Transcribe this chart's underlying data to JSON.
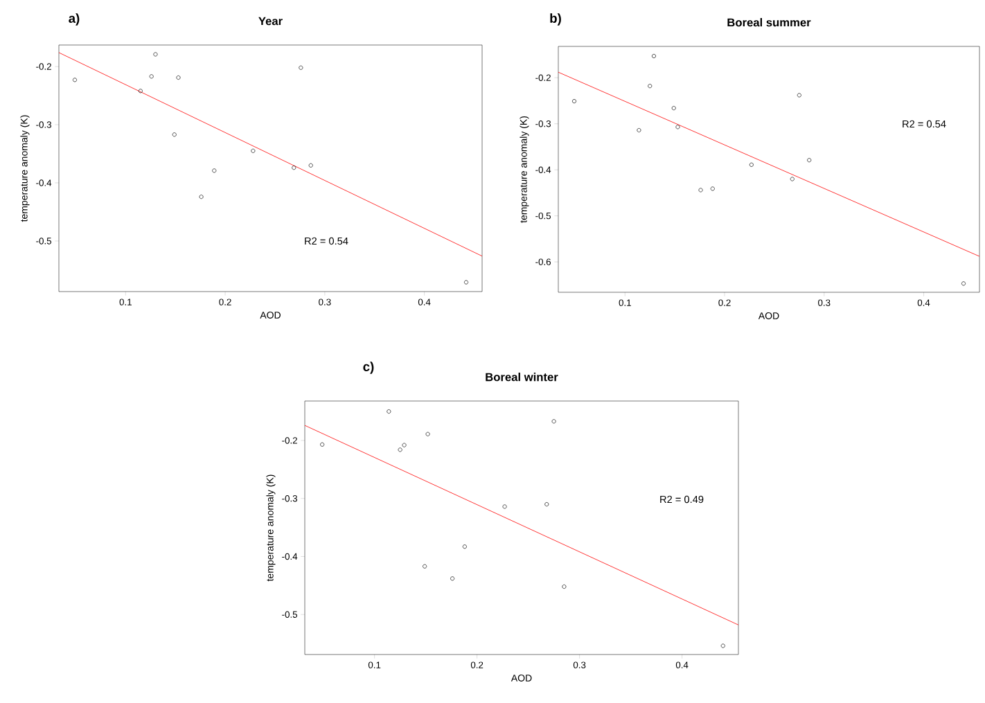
{
  "chart_data": [
    {
      "type": "scatter",
      "title": "Year",
      "xlabel": "AOD",
      "ylabel": "temperature anomaly (K)",
      "annotations": [
        "a)",
        "R2 = 0.54"
      ],
      "marker": "circle",
      "grid": false,
      "xlim": [
        0.033,
        0.458
      ],
      "ylim": [
        -0.587,
        -0.163
      ],
      "xticks": [
        0.1,
        0.2,
        0.3,
        0.4
      ],
      "yticks": [
        -0.5,
        -0.4,
        -0.3,
        -0.2
      ],
      "series": [
        {
          "color": "#000000",
          "x": [
            0.049,
            0.115,
            0.126,
            0.13,
            0.153,
            0.149,
            0.176,
            0.189,
            0.228,
            0.269,
            0.276,
            0.286,
            0.442
          ],
          "values": [
            -0.223,
            -0.242,
            -0.217,
            -0.179,
            -0.219,
            -0.317,
            -0.424,
            -0.379,
            -0.345,
            -0.374,
            -0.202,
            -0.37,
            -0.571
          ]
        },
        {
          "type": "line",
          "color": "#ff0000",
          "marker": "none",
          "x": [
            0.033,
            0.458
          ],
          "values": [
            -0.176,
            -0.526
          ]
        }
      ]
    },
    {
      "type": "scatter",
      "title": "Boreal summer",
      "xlabel": "AOD",
      "ylabel": "temperature anomaly (K)",
      "annotations": [
        "b)",
        "R2 = 0.54"
      ],
      "marker": "circle",
      "grid": false,
      "xlim": [
        0.033,
        0.456
      ],
      "ylim": [
        -0.666,
        -0.132
      ],
      "xticks": [
        0.1,
        0.2,
        0.3,
        0.4
      ],
      "yticks": [
        -0.6,
        -0.5,
        -0.4,
        -0.3,
        -0.2
      ],
      "series": [
        {
          "color": "#000000",
          "x": [
            0.049,
            0.114,
            0.125,
            0.129,
            0.149,
            0.153,
            0.176,
            0.188,
            0.227,
            0.268,
            0.275,
            0.285,
            0.44
          ],
          "values": [
            -0.251,
            -0.314,
            -0.218,
            -0.153,
            -0.266,
            -0.307,
            -0.444,
            -0.441,
            -0.389,
            -0.42,
            -0.238,
            -0.379,
            -0.647
          ]
        },
        {
          "type": "line",
          "color": "#ff0000",
          "marker": "none",
          "x": [
            0.033,
            0.456
          ],
          "values": [
            -0.188,
            -0.588
          ]
        }
      ]
    },
    {
      "type": "scatter",
      "title": "Boreal winter",
      "xlabel": "AOD",
      "ylabel": "temperature anomaly (K)",
      "annotations": [
        "c)",
        "R2 = 0.49"
      ],
      "marker": "circle",
      "grid": false,
      "xlim": [
        0.032,
        0.455
      ],
      "ylim": [
        -0.569,
        -0.132
      ],
      "xticks": [
        0.1,
        0.2,
        0.3,
        0.4
      ],
      "yticks": [
        -0.5,
        -0.4,
        -0.3,
        -0.2
      ],
      "series": [
        {
          "color": "#000000",
          "x": [
            0.049,
            0.114,
            0.125,
            0.129,
            0.152,
            0.149,
            0.176,
            0.188,
            0.227,
            0.268,
            0.275,
            0.285,
            0.44
          ],
          "values": [
            -0.207,
            -0.15,
            -0.216,
            -0.208,
            -0.189,
            -0.417,
            -0.438,
            -0.383,
            -0.314,
            -0.31,
            -0.167,
            -0.452,
            -0.554
          ]
        },
        {
          "type": "line",
          "color": "#ff0000",
          "marker": "none",
          "x": [
            0.032,
            0.455
          ],
          "values": [
            -0.174,
            -0.518
          ]
        }
      ]
    }
  ]
}
